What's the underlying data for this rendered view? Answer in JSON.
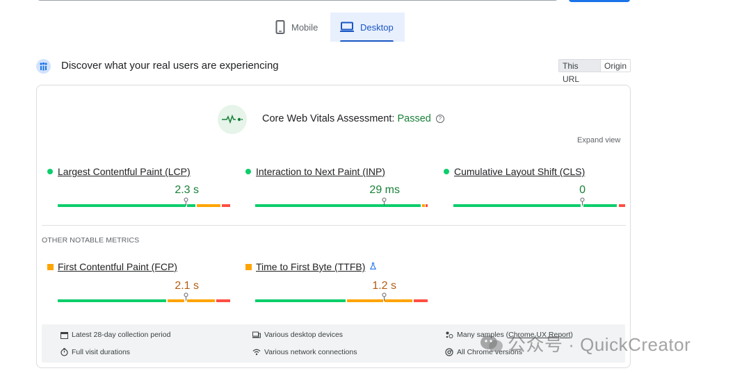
{
  "tabs": {
    "mobile": "Mobile",
    "desktop": "Desktop"
  },
  "crux": {
    "title": "Discover what your real users are experiencing",
    "toggle_url": "This URL",
    "toggle_origin": "Origin"
  },
  "assessment": {
    "label": "Core Web Vitals Assessment:",
    "status": "Passed",
    "help": "?",
    "expand": "Expand view"
  },
  "core_metrics": [
    {
      "label": "Largest Contentful Paint (LCP)",
      "value": "2.3 s",
      "rating": "good"
    },
    {
      "label": "Interaction to Next Paint (INP)",
      "value": "29 ms",
      "rating": "good"
    },
    {
      "label": "Cumulative Layout Shift (CLS)",
      "value": "0",
      "rating": "good"
    }
  ],
  "other": {
    "title": "OTHER NOTABLE METRICS",
    "metrics": [
      {
        "label": "First Contentful Paint (FCP)",
        "value": "2.1 s",
        "rating": "average"
      },
      {
        "label": "Time to First Byte (TTFB)",
        "value": "1.2 s",
        "rating": "average",
        "experimental_icon": "flask-icon"
      }
    ]
  },
  "footer": {
    "period": "Latest 28-day collection period",
    "devices": "Various desktop devices",
    "samples": "Many samples",
    "samples_link": "Chrome UX Report",
    "durations": "Full visit durations",
    "network": "Various network connections",
    "chrome": "All Chrome versions"
  },
  "watermark": {
    "text": "公众号 · QuickCreator"
  },
  "colors": {
    "good": "#0cce6b",
    "average": "#ffa400",
    "poor": "#ff4e42",
    "accent": "#1a73e8",
    "passed": "#188038"
  }
}
